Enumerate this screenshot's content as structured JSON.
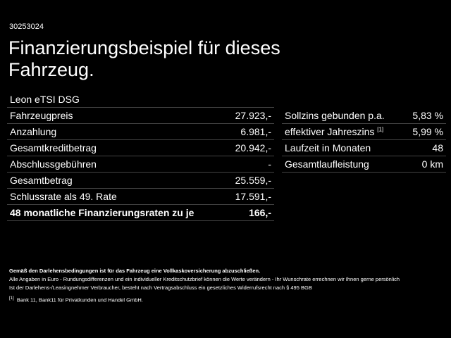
{
  "offer_code": "30253024",
  "title": "Finanzierungsbeispiel für dieses Fahrzeug.",
  "model": "Leon eTSI DSG",
  "left_rows": [
    {
      "label": "Fahrzeugpreis",
      "value": "27.923,-"
    },
    {
      "label": "Anzahlung",
      "value": "6.981,-"
    },
    {
      "label": "Gesamtkreditbetrag",
      "value": "20.942,-"
    },
    {
      "label": "Abschlussgebühren",
      "value": "-"
    },
    {
      "label": "Gesamtbetrag",
      "value": "25.559,-"
    },
    {
      "label": "Schlussrate als 49. Rate",
      "value": "17.591,-"
    },
    {
      "label": "48 monatliche Finanzierungsraten zu je",
      "value": "166,-"
    }
  ],
  "right_rows": [
    {
      "label": "Sollzins gebunden p.a.",
      "value": "5,83 %"
    },
    {
      "label": "effektiver Jahreszins",
      "sup": "[1]",
      "value": "5,99 %"
    },
    {
      "label": "Laufzeit in Monaten",
      "value": "48"
    },
    {
      "label": "Gesamtlaufleistung",
      "value": "0 km"
    }
  ],
  "notes": {
    "insurance": "Gemäß den Darlehensbedingungen ist für das Fahrzeug eine Vollkaskoversicherung abzuschließen.",
    "line1": "Alle Angaben in Euro - Rundungsdifferenzen und ein individueller Kreditschutzbrief können die Werte verändern - Ihr Wunschrate errechnen wir Ihnen gerne persönlich",
    "line2": "Ist der Darlehens-/Leasingnehmer Verbraucher, besteht nach Vertragsabschluss ein gesetzliches Widerrufsrecht nach § 495 BGB",
    "footnote_mark": "[1]",
    "footnote": "Bank 11, Bank11 für Privatkunden und Handel GmbH."
  }
}
